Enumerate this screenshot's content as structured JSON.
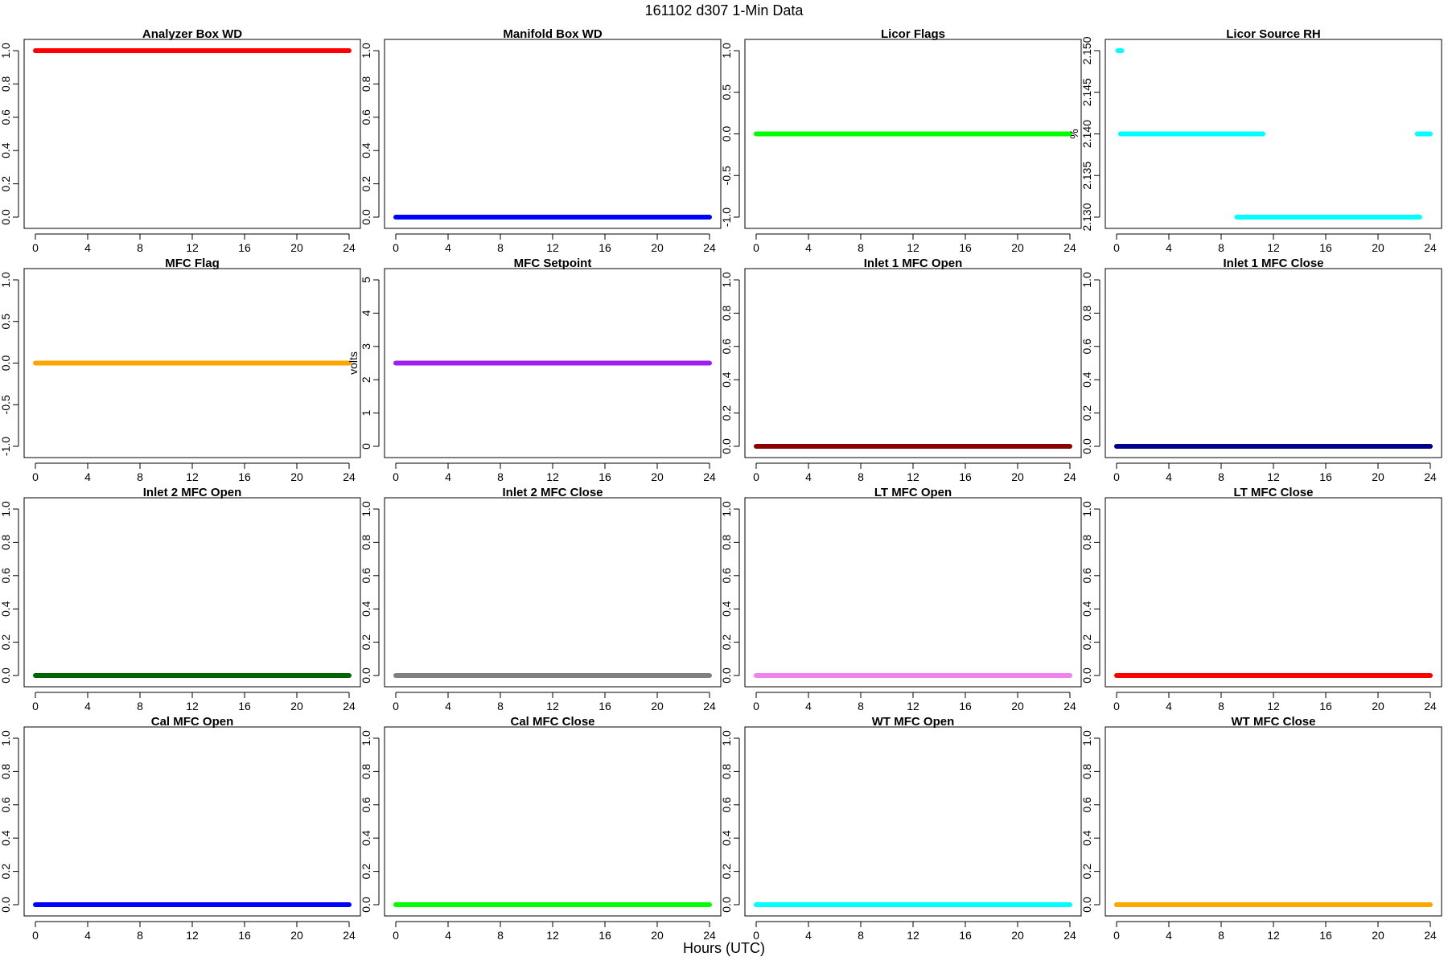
{
  "figure": {
    "title": "161102   d307   1-Min Data",
    "xlabel": "Hours (UTC)"
  },
  "chart_data": [
    {
      "type": "scatter",
      "title": "Analyzer Box WD",
      "ylabel": "",
      "xlim": [
        0,
        24
      ],
      "ylim": [
        0,
        1
      ],
      "xticks": [
        0,
        4,
        8,
        12,
        16,
        20,
        24
      ],
      "yticks": [
        "0.0",
        "0.2",
        "0.4",
        "0.6",
        "0.8",
        "1.0"
      ],
      "color": "#ff0000",
      "segments": [
        {
          "x": [
            0,
            24
          ],
          "y": 1.0
        }
      ]
    },
    {
      "type": "scatter",
      "title": "Manifold Box WD",
      "ylabel": "",
      "xlim": [
        0,
        24
      ],
      "ylim": [
        0,
        1
      ],
      "xticks": [
        0,
        4,
        8,
        12,
        16,
        20,
        24
      ],
      "yticks": [
        "0.0",
        "0.2",
        "0.4",
        "0.6",
        "0.8",
        "1.0"
      ],
      "color": "#0000ff",
      "segments": [
        {
          "x": [
            0,
            24
          ],
          "y": 0.0
        }
      ]
    },
    {
      "type": "scatter",
      "title": "Licor Flags",
      "ylabel": "",
      "xlim": [
        0,
        24
      ],
      "ylim": [
        -1,
        1
      ],
      "xticks": [
        0,
        4,
        8,
        12,
        16,
        20,
        24
      ],
      "yticks": [
        "-1.0",
        "-0.5",
        "0.0",
        "0.5",
        "1.0"
      ],
      "color": "#00ff00",
      "segments": [
        {
          "x": [
            0,
            24
          ],
          "y": 0.0
        }
      ]
    },
    {
      "type": "scatter",
      "title": "Licor Source RH",
      "ylabel": "%",
      "xlim": [
        0,
        24
      ],
      "ylim": [
        2.13,
        2.15
      ],
      "xticks": [
        0,
        4,
        8,
        12,
        16,
        20,
        24
      ],
      "yticks": [
        "2.130",
        "2.135",
        "2.140",
        "2.145",
        "2.150"
      ],
      "color": "#00ffff",
      "segments": [
        {
          "x": [
            0.1,
            0.4
          ],
          "y": 2.15
        },
        {
          "x": [
            0.3,
            11.2
          ],
          "y": 2.14
        },
        {
          "x": [
            23.0,
            24.0
          ],
          "y": 2.14
        },
        {
          "x": [
            9.2,
            23.2
          ],
          "y": 2.13
        }
      ]
    },
    {
      "type": "scatter",
      "title": "MFC Flag",
      "ylabel": "",
      "xlim": [
        0,
        24
      ],
      "ylim": [
        -1,
        1
      ],
      "xticks": [
        0,
        4,
        8,
        12,
        16,
        20,
        24
      ],
      "yticks": [
        "-1.0",
        "-0.5",
        "0.0",
        "0.5",
        "1.0"
      ],
      "color": "#ffa500",
      "segments": [
        {
          "x": [
            0,
            24
          ],
          "y": 0.0
        }
      ]
    },
    {
      "type": "scatter",
      "title": "MFC Setpoint",
      "ylabel": "volts",
      "xlim": [
        0,
        24
      ],
      "ylim": [
        0,
        5
      ],
      "xticks": [
        0,
        4,
        8,
        12,
        16,
        20,
        24
      ],
      "yticks": [
        "0",
        "1",
        "2",
        "3",
        "4",
        "5"
      ],
      "color": "#a020f0",
      "segments": [
        {
          "x": [
            0,
            24
          ],
          "y": 2.5
        }
      ]
    },
    {
      "type": "scatter",
      "title": "Inlet 1 MFC Open",
      "ylabel": "",
      "xlim": [
        0,
        24
      ],
      "ylim": [
        0,
        1
      ],
      "xticks": [
        0,
        4,
        8,
        12,
        16,
        20,
        24
      ],
      "yticks": [
        "0.0",
        "0.2",
        "0.4",
        "0.6",
        "0.8",
        "1.0"
      ],
      "color": "#8b0000",
      "segments": [
        {
          "x": [
            0,
            24
          ],
          "y": 0.0
        }
      ]
    },
    {
      "type": "scatter",
      "title": "Inlet 1 MFC Close",
      "ylabel": "",
      "xlim": [
        0,
        24
      ],
      "ylim": [
        0,
        1
      ],
      "xticks": [
        0,
        4,
        8,
        12,
        16,
        20,
        24
      ],
      "yticks": [
        "0.0",
        "0.2",
        "0.4",
        "0.6",
        "0.8",
        "1.0"
      ],
      "color": "#00008b",
      "segments": [
        {
          "x": [
            0,
            24
          ],
          "y": 0.0
        }
      ]
    },
    {
      "type": "scatter",
      "title": "Inlet 2 MFC Open",
      "ylabel": "",
      "xlim": [
        0,
        24
      ],
      "ylim": [
        0,
        1
      ],
      "xticks": [
        0,
        4,
        8,
        12,
        16,
        20,
        24
      ],
      "yticks": [
        "0.0",
        "0.2",
        "0.4",
        "0.6",
        "0.8",
        "1.0"
      ],
      "color": "#006400",
      "segments": [
        {
          "x": [
            0,
            24
          ],
          "y": 0.0
        }
      ]
    },
    {
      "type": "scatter",
      "title": "Inlet 2 MFC Close",
      "ylabel": "",
      "xlim": [
        0,
        24
      ],
      "ylim": [
        0,
        1
      ],
      "xticks": [
        0,
        4,
        8,
        12,
        16,
        20,
        24
      ],
      "yticks": [
        "0.0",
        "0.2",
        "0.4",
        "0.6",
        "0.8",
        "1.0"
      ],
      "color": "#808080",
      "segments": [
        {
          "x": [
            0,
            24
          ],
          "y": 0.0
        }
      ]
    },
    {
      "type": "scatter",
      "title": "LT MFC Open",
      "ylabel": "",
      "xlim": [
        0,
        24
      ],
      "ylim": [
        0,
        1
      ],
      "xticks": [
        0,
        4,
        8,
        12,
        16,
        20,
        24
      ],
      "yticks": [
        "0.0",
        "0.2",
        "0.4",
        "0.6",
        "0.8",
        "1.0"
      ],
      "color": "#ee82ee",
      "segments": [
        {
          "x": [
            0,
            24
          ],
          "y": 0.0
        }
      ]
    },
    {
      "type": "scatter",
      "title": "LT MFC Close",
      "ylabel": "",
      "xlim": [
        0,
        24
      ],
      "ylim": [
        0,
        1
      ],
      "xticks": [
        0,
        4,
        8,
        12,
        16,
        20,
        24
      ],
      "yticks": [
        "0.0",
        "0.2",
        "0.4",
        "0.6",
        "0.8",
        "1.0"
      ],
      "color": "#ff0000",
      "segments": [
        {
          "x": [
            0,
            24
          ],
          "y": 0.0
        }
      ]
    },
    {
      "type": "scatter",
      "title": "Cal MFC Open",
      "ylabel": "",
      "xlim": [
        0,
        24
      ],
      "ylim": [
        0,
        1
      ],
      "xticks": [
        0,
        4,
        8,
        12,
        16,
        20,
        24
      ],
      "yticks": [
        "0.0",
        "0.2",
        "0.4",
        "0.6",
        "0.8",
        "1.0"
      ],
      "color": "#0000ff",
      "segments": [
        {
          "x": [
            0,
            24
          ],
          "y": 0.0
        }
      ]
    },
    {
      "type": "scatter",
      "title": "Cal MFC Close",
      "ylabel": "",
      "xlim": [
        0,
        24
      ],
      "ylim": [
        0,
        1
      ],
      "xticks": [
        0,
        4,
        8,
        12,
        16,
        20,
        24
      ],
      "yticks": [
        "0.0",
        "0.2",
        "0.4",
        "0.6",
        "0.8",
        "1.0"
      ],
      "color": "#00ff00",
      "segments": [
        {
          "x": [
            0,
            24
          ],
          "y": 0.0
        }
      ]
    },
    {
      "type": "scatter",
      "title": "WT MFC Open",
      "ylabel": "",
      "xlim": [
        0,
        24
      ],
      "ylim": [
        0,
        1
      ],
      "xticks": [
        0,
        4,
        8,
        12,
        16,
        20,
        24
      ],
      "yticks": [
        "0.0",
        "0.2",
        "0.4",
        "0.6",
        "0.8",
        "1.0"
      ],
      "color": "#00ffff",
      "segments": [
        {
          "x": [
            0,
            24
          ],
          "y": 0.0
        }
      ]
    },
    {
      "type": "scatter",
      "title": "WT MFC Close",
      "ylabel": "",
      "xlim": [
        0,
        24
      ],
      "ylim": [
        0,
        1
      ],
      "xticks": [
        0,
        4,
        8,
        12,
        16,
        20,
        24
      ],
      "yticks": [
        "0.0",
        "0.2",
        "0.4",
        "0.6",
        "0.8",
        "1.0"
      ],
      "color": "#ffa500",
      "segments": [
        {
          "x": [
            0,
            24
          ],
          "y": 0.0
        }
      ]
    }
  ]
}
